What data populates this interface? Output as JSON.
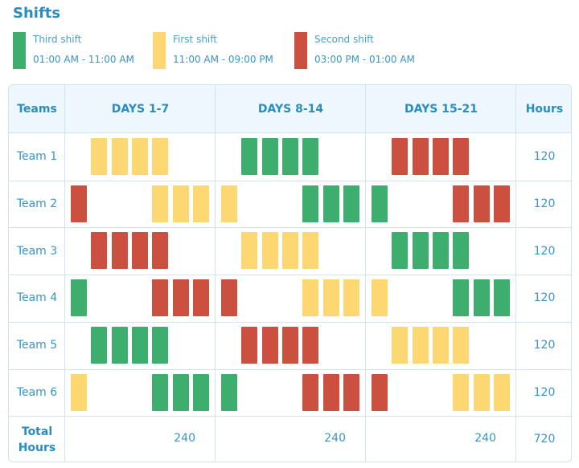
{
  "title": "Shifts",
  "colors": {
    "G": "#3dae6e",
    "Y": "#fdd771",
    "R": "#cc5040",
    "text": "#2a8dc0"
  },
  "legend": [
    {
      "key": "G",
      "name": "Third shift",
      "time": "01:00 AM - 11:00 AM"
    },
    {
      "key": "Y",
      "name": "First shift",
      "time": "11:00 AM - 09:00 PM"
    },
    {
      "key": "R",
      "name": "Second shift",
      "time": "03:00 PM - 01:00 AM"
    }
  ],
  "headers": {
    "teams": "Teams",
    "periods": [
      "DAYS 1-7",
      "DAYS 8-14",
      "DAYS 15-21"
    ],
    "hours": "Hours"
  },
  "rows": [
    {
      "team": "Team 1",
      "schedule": [
        ".YYYY..",
        ".GGGG..",
        ".RRRR.."
      ],
      "hours": "120"
    },
    {
      "team": "Team 2",
      "schedule": [
        "R...YYY",
        "Y...GGG",
        "G...RRR"
      ],
      "hours": "120"
    },
    {
      "team": "Team 3",
      "schedule": [
        ".RRRR..",
        ".YYYY..",
        ".GGGG.."
      ],
      "hours": "120"
    },
    {
      "team": "Team 4",
      "schedule": [
        "G...RRR",
        "R...YYY",
        "Y...GGG"
      ],
      "hours": "120"
    },
    {
      "team": "Team 5",
      "schedule": [
        ".GGGG..",
        ".RRRR..",
        ".YYYY.."
      ],
      "hours": "120"
    },
    {
      "team": "Team 6",
      "schedule": [
        "Y...GGG",
        "G...RRR",
        "R...YYY"
      ],
      "hours": "120"
    }
  ],
  "total": {
    "label_line1": "Total",
    "label_line2": "Hours",
    "periods": [
      "240",
      "240",
      "240"
    ],
    "hours": "720"
  }
}
